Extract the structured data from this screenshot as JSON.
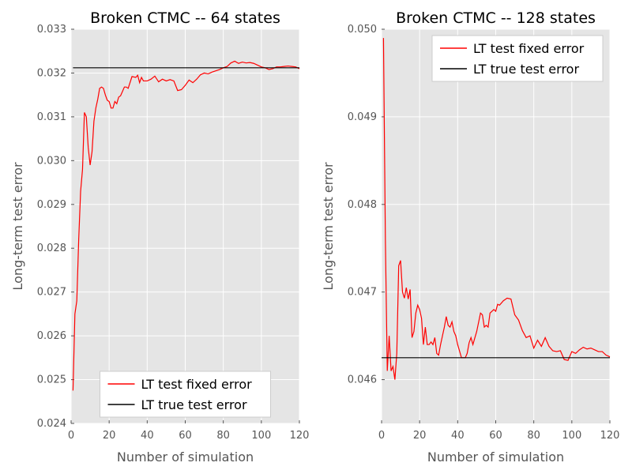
{
  "figure": {
    "background": "#ffffff",
    "panel_color": "#e5e5e5",
    "grid_color": "#ffffff",
    "series_colors": {
      "fixed": "#ff0000",
      "true": "#000000"
    }
  },
  "chart_data": [
    {
      "type": "line",
      "title": "Broken CTMC -- 64 states",
      "xlabel": "Number of simulation",
      "ylabel": "Long-term test error",
      "xlim": [
        0,
        120
      ],
      "ylim": [
        0.024,
        0.033
      ],
      "xticks": [
        0,
        20,
        40,
        60,
        80,
        100,
        120
      ],
      "yticks": [
        0.024,
        0.025,
        0.026,
        0.027,
        0.028,
        0.029,
        0.03,
        0.031,
        0.032,
        0.033
      ],
      "xtick_labels": [
        "0",
        "20",
        "40",
        "60",
        "80",
        "100",
        "120"
      ],
      "ytick_labels": [
        "0.024",
        "0.025",
        "0.026",
        "0.027",
        "0.028",
        "0.029",
        "0.030",
        "0.031",
        "0.032",
        "0.033"
      ],
      "grid": true,
      "legend": {
        "position": "lower-center",
        "entries": [
          "LT test fixed error",
          "LT true test error"
        ]
      },
      "series": [
        {
          "name": "LT test fixed error",
          "color": "#ff0000",
          "x": [
            1,
            2,
            3,
            4,
            5,
            6,
            7,
            8,
            9,
            10,
            11,
            12,
            13,
            14,
            15,
            16,
            17,
            18,
            19,
            20,
            21,
            22,
            23,
            24,
            25,
            26,
            27,
            28,
            29,
            30,
            32,
            34,
            35,
            36,
            37,
            38,
            40,
            42,
            44,
            46,
            48,
            50,
            52,
            54,
            56,
            58,
            60,
            62,
            64,
            66,
            68,
            70,
            72,
            74,
            76,
            78,
            80,
            82,
            84,
            86,
            88,
            90,
            92,
            94,
            96,
            98,
            100,
            102,
            104,
            106,
            108,
            110,
            112,
            114,
            116,
            118,
            120
          ],
          "y": [
            0.02475,
            0.0265,
            0.0268,
            0.0282,
            0.0293,
            0.0298,
            0.0311,
            0.031,
            0.0303,
            0.0299,
            0.0302,
            0.0309,
            0.0312,
            0.0314,
            0.03165,
            0.03168,
            0.03165,
            0.0315,
            0.03138,
            0.03135,
            0.0312,
            0.0312,
            0.03135,
            0.0313,
            0.03145,
            0.03148,
            0.03158,
            0.03168,
            0.03168,
            0.03165,
            0.03192,
            0.0319,
            0.03195,
            0.03178,
            0.0319,
            0.03182,
            0.03182,
            0.03186,
            0.03193,
            0.0318,
            0.03186,
            0.03182,
            0.03185,
            0.03182,
            0.0316,
            0.03162,
            0.03172,
            0.03184,
            0.03178,
            0.03186,
            0.03196,
            0.032,
            0.03198,
            0.03202,
            0.03205,
            0.03208,
            0.03212,
            0.03215,
            0.03223,
            0.03227,
            0.03222,
            0.03225,
            0.03223,
            0.03224,
            0.03222,
            0.03218,
            0.03214,
            0.03212,
            0.03208,
            0.0321,
            0.03214,
            0.03214,
            0.03215,
            0.03216,
            0.03215,
            0.03214,
            0.0321
          ]
        },
        {
          "name": "LT true test error",
          "color": "#000000",
          "x": [
            1,
            120
          ],
          "y": [
            0.03212,
            0.03212
          ]
        }
      ]
    },
    {
      "type": "line",
      "title": "Broken CTMC -- 128 states",
      "xlabel": "Number of simulation",
      "ylabel": "Long-term test error",
      "xlim": [
        0,
        120
      ],
      "ylim": [
        0.0455,
        0.05
      ],
      "xticks": [
        0,
        20,
        40,
        60,
        80,
        100,
        120
      ],
      "yticks": [
        0.046,
        0.047,
        0.048,
        0.049,
        0.05
      ],
      "xtick_labels": [
        "0",
        "20",
        "40",
        "60",
        "80",
        "100",
        "120"
      ],
      "ytick_labels": [
        "0.046",
        "0.047",
        "0.048",
        "0.049",
        "0.050"
      ],
      "grid": true,
      "legend": {
        "position": "top-right",
        "entries": [
          "LT test fixed error",
          "LT true test error"
        ]
      },
      "series": [
        {
          "name": "LT test fixed error",
          "color": "#ff0000",
          "x": [
            1,
            2,
            3,
            4,
            5,
            6,
            7,
            8,
            9,
            10,
            11,
            12,
            13,
            14,
            15,
            16,
            17,
            18,
            19,
            20,
            21,
            22,
            23,
            24,
            25,
            26,
            27,
            28,
            29,
            30,
            31,
            32,
            33,
            34,
            35,
            36,
            37,
            38,
            39,
            40,
            42,
            44,
            45,
            46,
            47,
            48,
            50,
            52,
            53,
            54,
            55,
            56,
            57,
            58,
            59,
            60,
            61,
            62,
            64,
            66,
            68,
            70,
            72,
            74,
            76,
            78,
            80,
            82,
            84,
            86,
            88,
            90,
            92,
            94,
            96,
            98,
            100,
            102,
            104,
            106,
            108,
            110,
            112,
            114,
            116,
            118,
            120
          ],
          "y": [
            0.0499,
            0.0476,
            0.0461,
            0.0465,
            0.0461,
            0.04615,
            0.046,
            0.0463,
            0.0473,
            0.04736,
            0.047,
            0.04693,
            0.04705,
            0.04692,
            0.04703,
            0.04648,
            0.04655,
            0.04676,
            0.04685,
            0.0468,
            0.0467,
            0.0464,
            0.0466,
            0.0464,
            0.0464,
            0.04643,
            0.0464,
            0.04648,
            0.0463,
            0.04628,
            0.0464,
            0.0465,
            0.0466,
            0.04672,
            0.04662,
            0.0466,
            0.04666,
            0.04655,
            0.0465,
            0.0464,
            0.04625,
            0.04625,
            0.0463,
            0.04642,
            0.04648,
            0.0464,
            0.04655,
            0.04676,
            0.04674,
            0.0466,
            0.04662,
            0.0466,
            0.04676,
            0.04678,
            0.0468,
            0.04678,
            0.04686,
            0.04685,
            0.0469,
            0.04693,
            0.04692,
            0.04674,
            0.04668,
            0.04656,
            0.04648,
            0.0465,
            0.04636,
            0.04645,
            0.04638,
            0.04648,
            0.04638,
            0.04633,
            0.04632,
            0.04633,
            0.04623,
            0.04622,
            0.04632,
            0.0463,
            0.04634,
            0.04637,
            0.04635,
            0.04636,
            0.04634,
            0.04632,
            0.04632,
            0.04628,
            0.04626
          ]
        },
        {
          "name": "LT true test error",
          "color": "#000000",
          "x": [
            0,
            120
          ],
          "y": [
            0.04625,
            0.04625
          ]
        }
      ]
    }
  ]
}
